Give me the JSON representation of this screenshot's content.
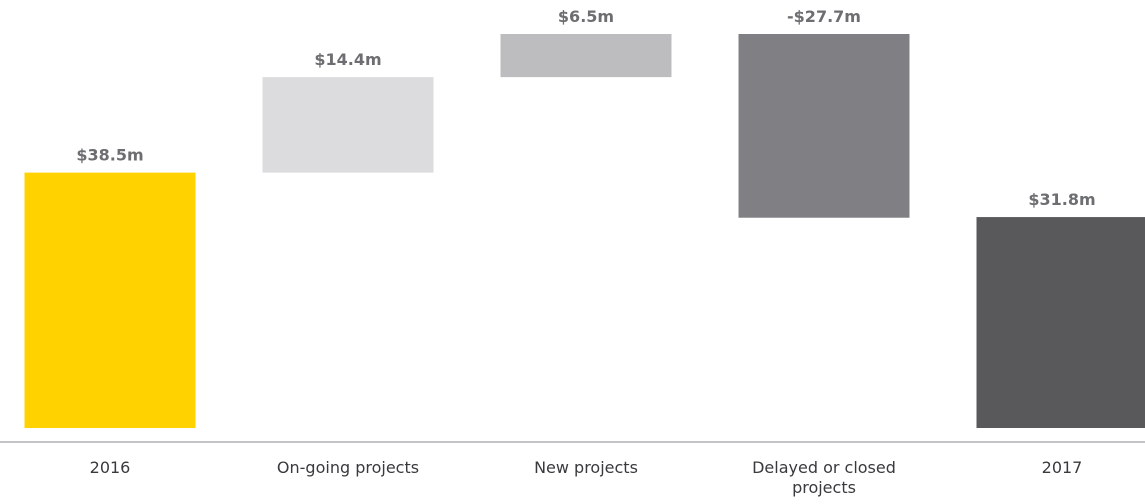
{
  "chart_data": {
    "type": "waterfall",
    "categories": [
      "2016",
      "On-going projects",
      "New projects",
      "Delayed or closed projects",
      "2017"
    ],
    "values": [
      38.5,
      14.4,
      6.5,
      -27.7,
      31.8
    ],
    "value_labels": [
      "$38.5m",
      "$14.4m",
      "$6.5m",
      "-$27.7m",
      "$31.8m"
    ],
    "measure": [
      "absolute",
      "relative",
      "relative",
      "relative",
      "total"
    ],
    "colors": [
      "#ffd200",
      "#dcdcde",
      "#bdbdbf",
      "#808084",
      "#59595c"
    ]
  }
}
